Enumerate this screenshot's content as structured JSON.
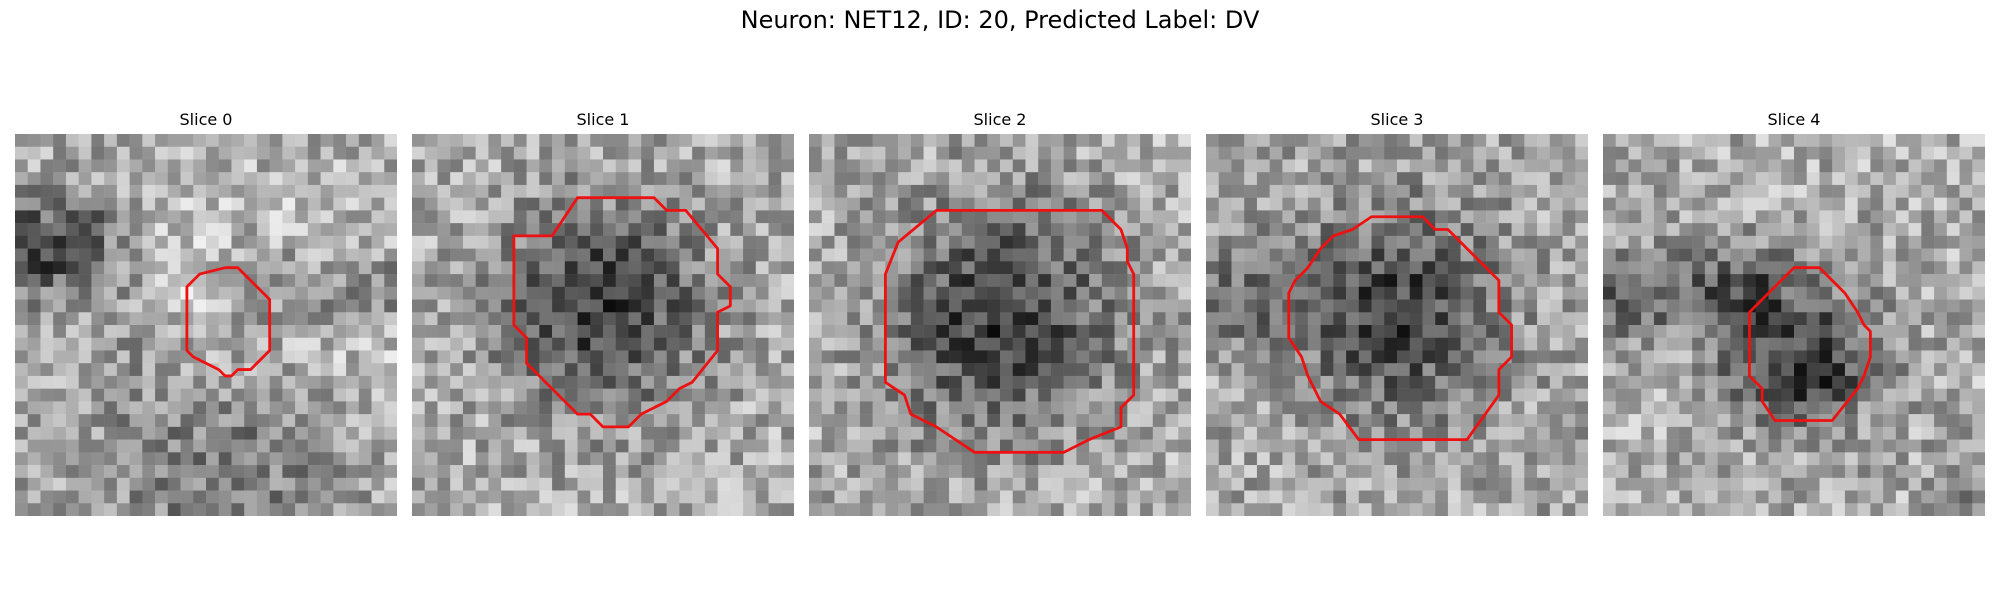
{
  "figure": {
    "title": "Neuron: NET12, ID: 20, Predicted Label: DV",
    "outline_color": "#ee1111",
    "image_style": "grayscale pixelated microscopy slice with red segmentation outline"
  },
  "slices": [
    {
      "title": "Slice 0"
    },
    {
      "title": "Slice 1"
    },
    {
      "title": "Slice 2"
    },
    {
      "title": "Slice 3"
    },
    {
      "title": "Slice 4"
    }
  ]
}
